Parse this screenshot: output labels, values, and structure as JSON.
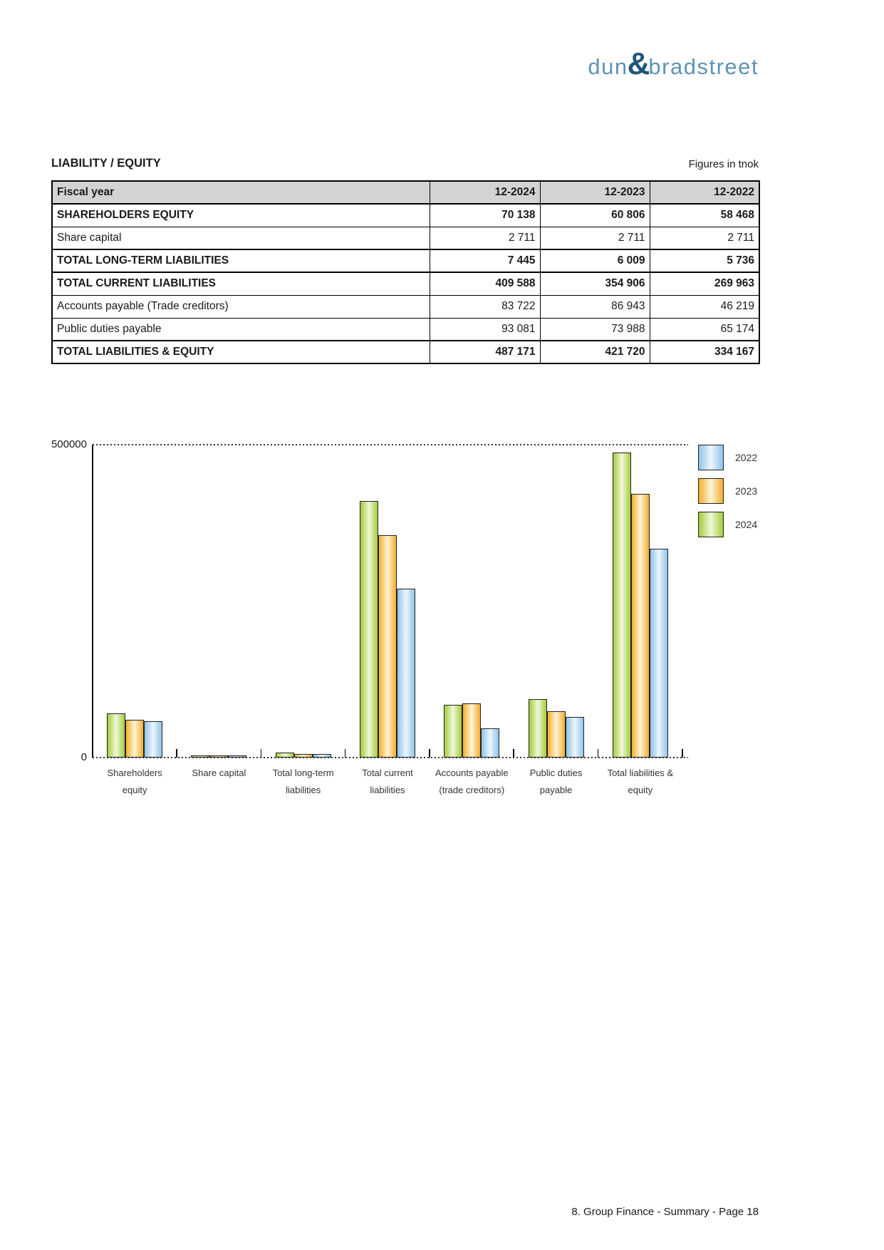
{
  "brand": {
    "dun": "dun",
    "ampersand": "&",
    "bradstreet": "bradstreet",
    "word_color": "#5E93B4",
    "ampersand_color": "#1F5679"
  },
  "header": {
    "title": "LIABILITY / EQUITY",
    "unit_note": "Figures in tnok"
  },
  "table": {
    "header_bg": "#d3d3d3",
    "columns": [
      "Fiscal year",
      "12-2024",
      "12-2023",
      "12-2022"
    ],
    "rows": [
      {
        "label": "SHAREHOLDERS EQUITY",
        "values": [
          "70 138",
          "60 806",
          "58 468"
        ]
      },
      {
        "label": "Share capital",
        "values": [
          "2 711",
          "2 711",
          "2 711"
        ]
      },
      {
        "label": "TOTAL LONG-TERM LIABILITIES",
        "values": [
          "7 445",
          "6 009",
          "5 736"
        ]
      },
      {
        "label": "TOTAL CURRENT LIABILITIES",
        "values": [
          "409 588",
          "354 906",
          "269 963"
        ]
      },
      {
        "label": "Accounts payable (Trade creditors)",
        "values": [
          "83 722",
          "86 943",
          "46 219"
        ]
      },
      {
        "label": "Public duties payable",
        "values": [
          "93 081",
          "73 988",
          "65 174"
        ]
      },
      {
        "label": "TOTAL LIABILITIES & EQUITY",
        "values": [
          "487 171",
          "421 720",
          "334 167"
        ]
      }
    ]
  },
  "chart_data": {
    "type": "bar",
    "title": "",
    "ylim": [
      0,
      500000
    ],
    "ytick_labels": [
      "0",
      "500000"
    ],
    "grid": "dotted top gridline and dotted baseline",
    "legend_position": "top-right",
    "categories": [
      [
        "Shareholders",
        "equity"
      ],
      [
        "Share capital"
      ],
      [
        "Total long-term",
        "liabilities"
      ],
      [
        "Total current",
        "liabilities"
      ],
      [
        "Accounts payable",
        "(trade creditors)"
      ],
      [
        "Public duties",
        "payable"
      ],
      [
        "Total liabilities &",
        "equity"
      ]
    ],
    "series": [
      {
        "name": "2024",
        "edge_color": "#a3cc3c",
        "center_color": "#f0f8d8",
        "values": [
          70138,
          2711,
          7445,
          409588,
          83722,
          93081,
          487171
        ]
      },
      {
        "name": "2023",
        "edge_color": "#f6ad2d",
        "center_color": "#fdf4d5",
        "values": [
          60806,
          2711,
          6009,
          354906,
          86943,
          73988,
          421720
        ]
      },
      {
        "name": "2022",
        "edge_color": "#8ec3e8",
        "center_color": "#edf6fd",
        "values": [
          58468,
          2711,
          5736,
          269963,
          46219,
          65174,
          334167
        ]
      }
    ],
    "legend_order": [
      "2022",
      "2023",
      "2024"
    ]
  },
  "footer": {
    "text": "8. Group Finance - Summary - Page 18"
  }
}
